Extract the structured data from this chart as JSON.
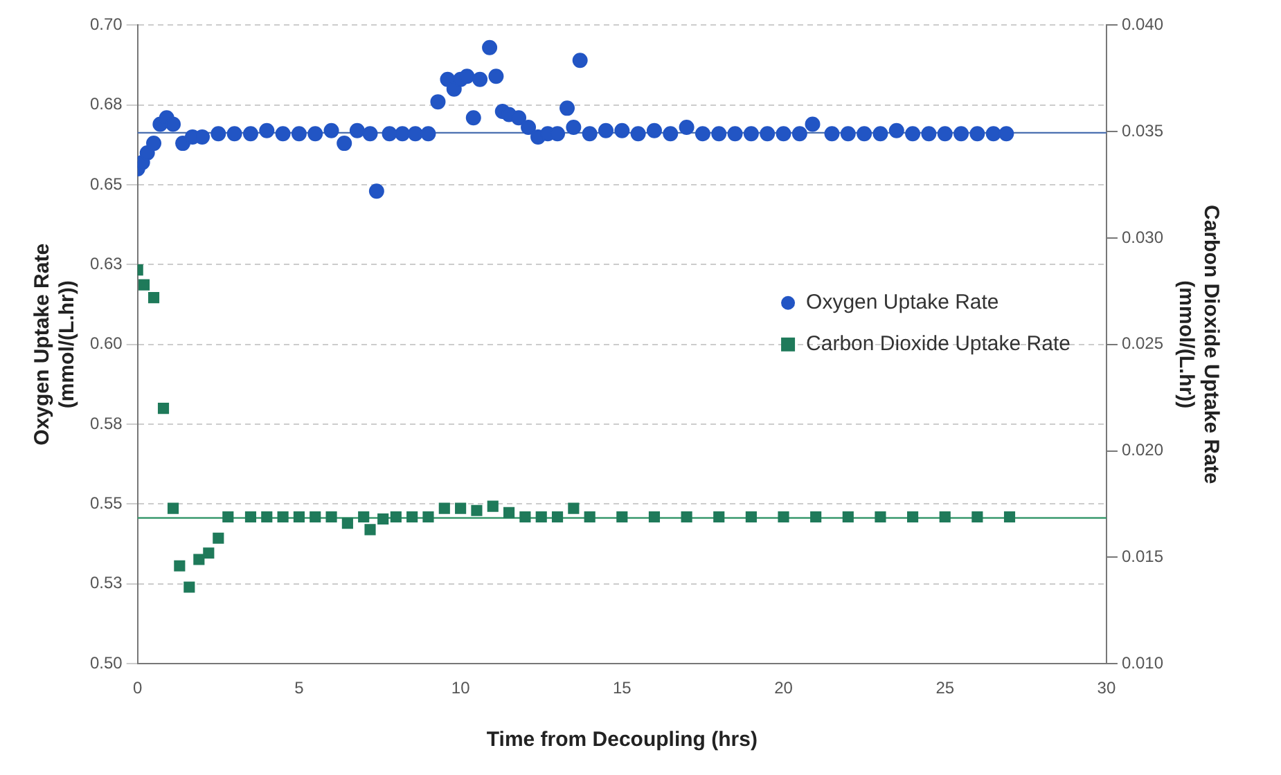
{
  "chart_data": {
    "type": "scatter",
    "xlabel": "Time from Decoupling (hrs)",
    "ylabel": "Oxygen Uptake Rate (mmol/(L.hr))",
    "y2label": "Carbon Dioxide Uptake Rate (mmol/(L.hr))",
    "xlim": [
      0,
      30
    ],
    "xticks": [
      0,
      5,
      10,
      15,
      20,
      25,
      30
    ],
    "ylim": [
      0.5,
      0.7
    ],
    "yticks": [
      {
        "value": 0.5,
        "label": "0.50"
      },
      {
        "value": 0.525,
        "label": "0.53"
      },
      {
        "value": 0.55,
        "label": "0.55"
      },
      {
        "value": 0.575,
        "label": "0.58"
      },
      {
        "value": 0.6,
        "label": "0.60"
      },
      {
        "value": 0.625,
        "label": "0.63"
      },
      {
        "value": 0.65,
        "label": "0.65"
      },
      {
        "value": 0.675,
        "label": "0.68"
      },
      {
        "value": 0.7,
        "label": "0.70"
      }
    ],
    "y2lim": [
      0.01,
      0.04
    ],
    "y2ticks": [
      {
        "value": 0.01,
        "label": "0.010"
      },
      {
        "value": 0.015,
        "label": "0.015"
      },
      {
        "value": 0.02,
        "label": "0.020"
      },
      {
        "value": 0.025,
        "label": "0.025"
      },
      {
        "value": 0.03,
        "label": "0.030"
      },
      {
        "value": 0.035,
        "label": "0.035"
      },
      {
        "value": 0.04,
        "label": "0.040"
      }
    ],
    "grid": "y",
    "legend": "right",
    "series": [
      {
        "name": "Oxygen Uptake Rate",
        "color": "#2255c4",
        "marker": "circle",
        "x": [
          0,
          0.15,
          0.3,
          0.5,
          0.7,
          0.9,
          1.1,
          1.4,
          1.7,
          2,
          2.5,
          3,
          3.5,
          4,
          4.5,
          5,
          5.5,
          6,
          6.4,
          6.8,
          7.2,
          7.4,
          7.8,
          8.2,
          8.6,
          9,
          9.3,
          9.6,
          9.8,
          10,
          10.2,
          10.4,
          10.6,
          10.9,
          11.1,
          11.3,
          11.5,
          11.8,
          12.1,
          12.4,
          12.7,
          13,
          13.3,
          13.5,
          13.7,
          14,
          14.5,
          15,
          15.5,
          16,
          16.5,
          17,
          17.5,
          18,
          18.5,
          19,
          19.5,
          20,
          20.5,
          20.9,
          21.5,
          22,
          22.5,
          23,
          23.5,
          24,
          24.5,
          25,
          25.5,
          26,
          26.5,
          26.9
        ],
        "values": [
          0.655,
          0.657,
          0.66,
          0.663,
          0.669,
          0.671,
          0.669,
          0.663,
          0.665,
          0.665,
          0.666,
          0.666,
          0.666,
          0.667,
          0.666,
          0.666,
          0.666,
          0.667,
          0.663,
          0.667,
          0.666,
          0.648,
          0.666,
          0.666,
          0.666,
          0.666,
          0.676,
          0.683,
          0.68,
          0.683,
          0.684,
          0.671,
          0.683,
          0.693,
          0.684,
          0.673,
          0.672,
          0.671,
          0.668,
          0.665,
          0.666,
          0.666,
          0.674,
          0.668,
          0.689,
          0.666,
          0.667,
          0.667,
          0.666,
          0.667,
          0.666,
          0.668,
          0.666,
          0.666,
          0.666,
          0.666,
          0.666,
          0.666,
          0.666,
          0.669,
          0.666,
          0.666,
          0.666,
          0.666,
          0.667,
          0.666,
          0.666,
          0.666,
          0.666,
          0.666,
          0.666,
          0.666
        ]
      },
      {
        "name": "Carbon Dioxide Uptake Rate",
        "color": "#1f7a5a",
        "marker": "square",
        "axis": "y2",
        "x": [
          0,
          0.2,
          0.5,
          0.8,
          1.1,
          1.3,
          1.6,
          1.9,
          2.2,
          2.5,
          2.8,
          3.5,
          4,
          4.5,
          5,
          5.5,
          6,
          6.5,
          7,
          7.2,
          7.6,
          8,
          8.5,
          9,
          9.5,
          10,
          10.5,
          11,
          11.5,
          12,
          12.5,
          13,
          13.5,
          14,
          15,
          16,
          17,
          18,
          19,
          20,
          21,
          22,
          23,
          24,
          25,
          26,
          27
        ],
        "values": [
          0.0285,
          0.0278,
          0.0272,
          0.022,
          0.0173,
          0.0146,
          0.0136,
          0.0149,
          0.0152,
          0.0159,
          0.0169,
          0.0169,
          0.0169,
          0.0169,
          0.0169,
          0.0169,
          0.0169,
          0.0166,
          0.0169,
          0.0163,
          0.0168,
          0.0169,
          0.0169,
          0.0169,
          0.0173,
          0.0173,
          0.0172,
          0.0174,
          0.0171,
          0.0169,
          0.0169,
          0.0169,
          0.0173,
          0.0169,
          0.0169,
          0.0169,
          0.0169,
          0.0169,
          0.0169,
          0.0169,
          0.0169,
          0.0169,
          0.0169,
          0.0169,
          0.0169,
          0.0169,
          0.0169
        ]
      }
    ],
    "ref_lines": [
      {
        "axis": "y",
        "value": 0.6663,
        "color": "#4a6fb0"
      },
      {
        "axis": "y2",
        "value": 0.01685,
        "color": "#3a9a6e"
      }
    ]
  }
}
